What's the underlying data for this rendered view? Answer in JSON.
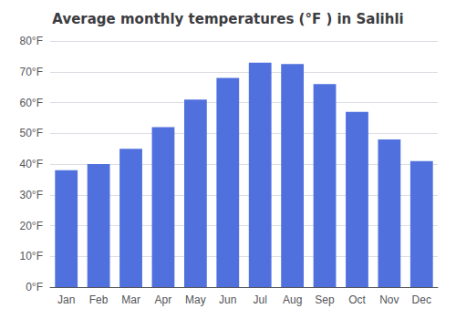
{
  "chart_data": {
    "type": "bar",
    "title": "Average monthly temperatures (°F ) in Salihli",
    "categories": [
      "Jan",
      "Feb",
      "Mar",
      "Apr",
      "May",
      "Jun",
      "Jul",
      "Aug",
      "Sep",
      "Oct",
      "Nov",
      "Dec"
    ],
    "values": [
      38,
      40,
      45,
      52,
      61,
      68,
      73,
      72.5,
      66,
      57,
      48,
      41
    ],
    "ylim": [
      0,
      80
    ],
    "yticks": [
      {
        "value": 0,
        "label": "0°F"
      },
      {
        "value": 10,
        "label": "10°F"
      },
      {
        "value": 20,
        "label": "20°F"
      },
      {
        "value": 30,
        "label": "30°F"
      },
      {
        "value": 40,
        "label": "40°F"
      },
      {
        "value": 50,
        "label": "50°F"
      },
      {
        "value": 60,
        "label": "60°F"
      },
      {
        "value": 70,
        "label": "70°F"
      },
      {
        "value": 80,
        "label": "80°F"
      }
    ],
    "grid": true
  }
}
